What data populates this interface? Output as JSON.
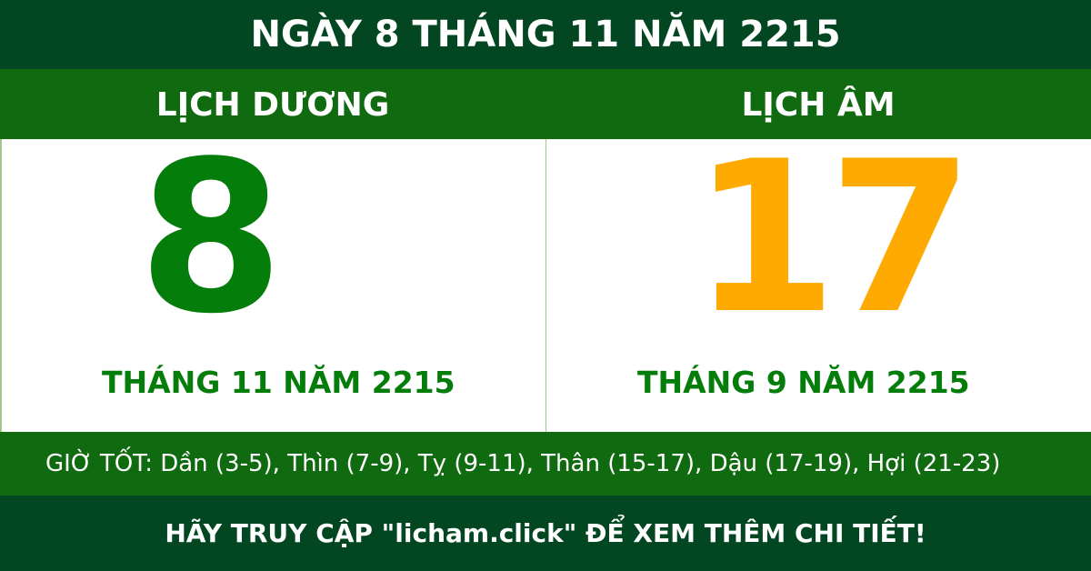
{
  "title": "NGÀY 8 THÁNG 11 NĂM 2215",
  "solar": {
    "heading": "LỊCH DƯƠNG",
    "day": "8",
    "month_year": "THÁNG 11 NĂM 2215"
  },
  "lunar": {
    "heading": "LỊCH ÂM",
    "day": "17",
    "month_year": "THÁNG 9 NĂM 2215"
  },
  "good_hours": "GIỜ TỐT: Dần (3-5), Thìn (7-9), Tỵ (9-11), Thân (15-17), Dậu (17-19), Hợi (21-23)",
  "footer": "HÃY TRUY CẬP \"licham.click\" ĐỂ XEM THÊM CHI TIẾT!",
  "colors": {
    "dark_green": "#034722",
    "green": "#106b10",
    "day_green": "#047d0a",
    "lunar_orange": "#ffaa00"
  }
}
